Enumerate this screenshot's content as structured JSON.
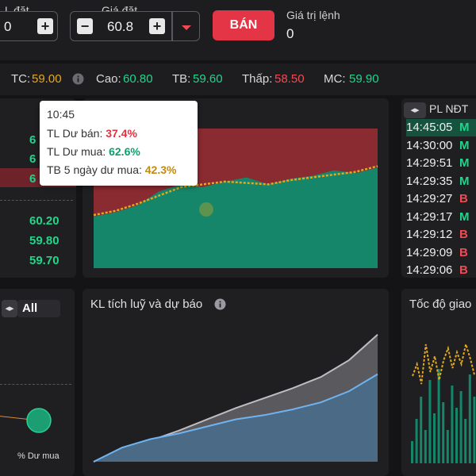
{
  "order": {
    "qty_label": "L đặt",
    "qty_value": "0",
    "price_label": "Giá đặt",
    "price_value": "60.8",
    "sell_label": "BÁN",
    "order_value_label": "Giá trị lệnh",
    "order_value": "0"
  },
  "ticker": {
    "tc_label": "TC:",
    "tc": "59.00",
    "cao_label": "Cao:",
    "cao": "60.80",
    "tb_label": "TB:",
    "tb": "59.60",
    "thap_label": "Thấp:",
    "thap": "58.50",
    "mc_label": "MC:",
    "mc": "59.90"
  },
  "left_prices": [
    "6",
    "6",
    "6",
    "60.20",
    "59.80",
    "59.70"
  ],
  "tooltip": {
    "time": "10:45",
    "sell_label": "TL Dư bán:",
    "sell_value": "37.4%",
    "buy_label": "TL Dư mua:",
    "buy_value": "62.6%",
    "avg_label": "TB 5 ngày dư mua:",
    "avg_value": "42.3%"
  },
  "trades": {
    "header": "PL NĐT",
    "rows": [
      {
        "time": "14:45:05",
        "side": "M"
      },
      {
        "time": "14:30:00",
        "side": "M"
      },
      {
        "time": "14:29:51",
        "side": "M"
      },
      {
        "time": "14:29:35",
        "side": "M"
      },
      {
        "time": "14:29:27",
        "side": "B"
      },
      {
        "time": "14:29:17",
        "side": "M"
      },
      {
        "time": "14:29:12",
        "side": "B"
      },
      {
        "time": "14:29:09",
        "side": "B"
      },
      {
        "time": "14:29:06",
        "side": "B"
      }
    ]
  },
  "bottom_left": {
    "toggle_label": "All",
    "axis_label": "% Dư mua"
  },
  "accum": {
    "title": "KL tích luỹ và dự báo"
  },
  "speed": {
    "title": "Tốc độ giao"
  },
  "colors": {
    "green": "#1fd68a",
    "red": "#f04b55",
    "yellow": "#e5a81d",
    "area_green": "#15866a",
    "area_red": "#8a2a31"
  },
  "chart_data": [
    {
      "type": "area",
      "series": [
        {
          "values": [
            37,
            40,
            45,
            55,
            60,
            58,
            62,
            65,
            60,
            64,
            66,
            70,
            68,
            72
          ]
        },
        {
          "values": [
            38,
            41,
            46,
            52,
            58,
            60,
            62,
            61,
            60,
            63,
            65,
            67,
            69,
            73
          ]
        }
      ]
    },
    {
      "type": "area",
      "series": [
        {
          "values": [
            0,
            8,
            15,
            22,
            30,
            38,
            45,
            52,
            60,
            72,
            90
          ]
        },
        {
          "values": [
            0,
            10,
            16,
            20,
            25,
            30,
            33,
            37,
            42,
            50,
            62
          ]
        }
      ]
    }
  ]
}
